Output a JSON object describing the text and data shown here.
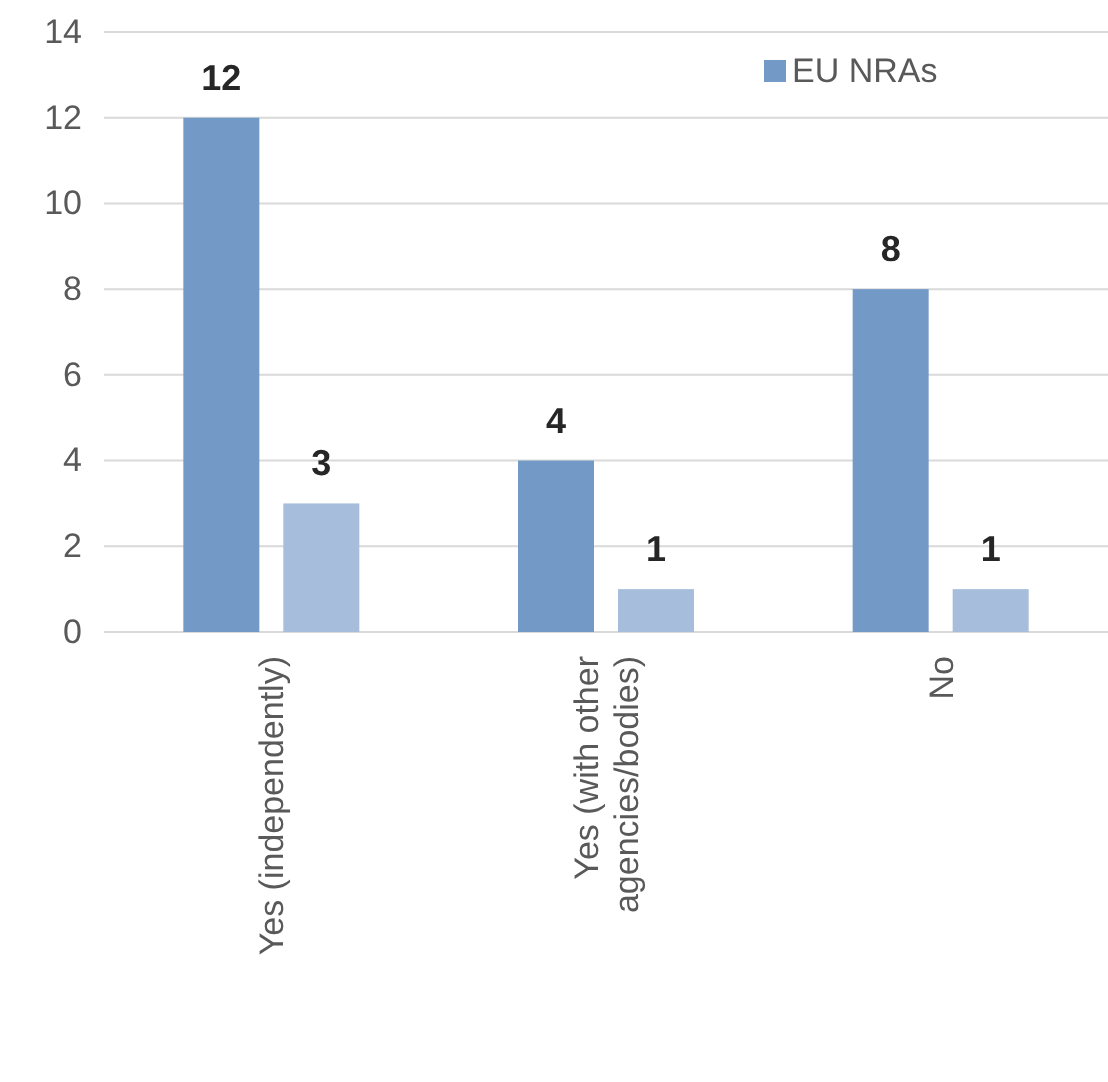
{
  "chart_data": {
    "type": "bar",
    "categories": [
      "Yes (independently)",
      "Yes (with other agencies/bodies)",
      "No"
    ],
    "series": [
      {
        "name": "EU NRAs",
        "color": "#7399c6",
        "values": [
          12,
          4,
          8
        ]
      },
      {
        "color": "#a6bddb",
        "values": [
          3,
          1,
          1
        ]
      }
    ],
    "ylim": [
      0,
      14
    ],
    "yticks": [
      0,
      2,
      4,
      6,
      8,
      10,
      12,
      14
    ],
    "grid": "y",
    "legend": "top right",
    "data_labels": true
  }
}
